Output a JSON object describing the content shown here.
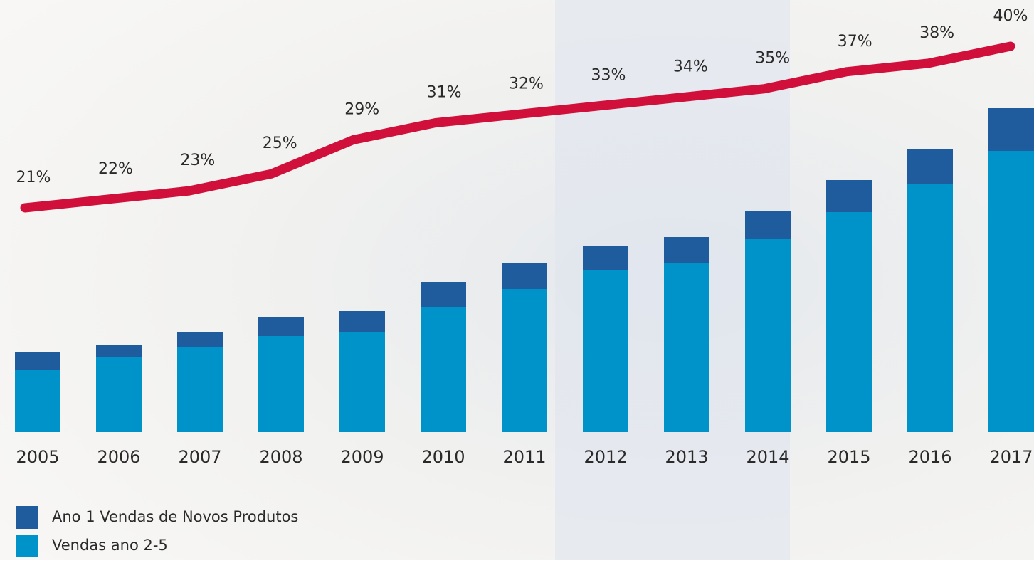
{
  "chart_data": {
    "type": "bar",
    "categories": [
      "2005",
      "2006",
      "2007",
      "2008",
      "2009",
      "2010",
      "2011",
      "2012",
      "2013",
      "2014",
      "2015",
      "2016",
      "2017"
    ],
    "series": [
      {
        "name": "Vendas ano 2-5",
        "color": "#0093c9",
        "values": [
          87,
          105,
          119,
          135,
          141,
          175,
          201,
          227,
          237,
          271,
          309,
          349,
          395
        ]
      },
      {
        "name": "Ano 1 Vendas de Novos Produtos",
        "color": "#1f5c9e",
        "values": [
          25,
          17,
          22,
          27,
          29,
          36,
          36,
          35,
          37,
          39,
          45,
          49,
          60
        ]
      },
      {
        "type": "line",
        "axis": "y2",
        "color": "#d0103a",
        "values": [
          21,
          22,
          23,
          25,
          29,
          31,
          32,
          33,
          34,
          35,
          37,
          38,
          40
        ],
        "value_labels": [
          "21%",
          "22%",
          "23%",
          "25%",
          "29%",
          "31%",
          "32%",
          "33%",
          "34%",
          "35%",
          "37%",
          "38%",
          "40%"
        ]
      }
    ],
    "ylim": [
      0,
      455
    ],
    "y2lim": [
      21,
      40
    ],
    "stacked": true,
    "legend": "bottom-left"
  }
}
